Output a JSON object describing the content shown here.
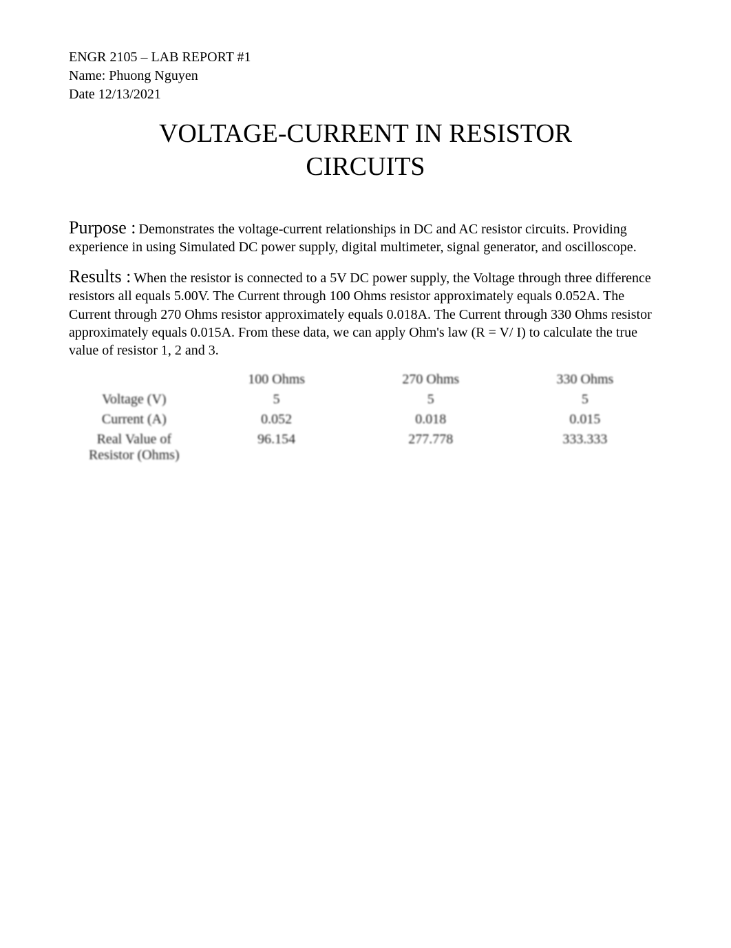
{
  "header": {
    "course_line": "ENGR 2105 – LAB REPORT #1",
    "name_line": "Name: Phuong Nguyen",
    "date_line": "Date 12/13/2021"
  },
  "title_line1": "VOLTAGE-CURRENT IN RESISTOR",
  "title_line2": "CIRCUITS",
  "purpose": {
    "label": "Purpose :",
    "body": "Demonstrates the voltage-current relationships in DC and AC resistor circuits. Providing experience in using Simulated DC power supply, digital multimeter, signal generator, and oscilloscope."
  },
  "results": {
    "label": "Results :",
    "body": "When the resistor is connected to a 5V DC power supply, the Voltage through three difference resistors all equals 5.00V. The Current through 100 Ohms resistor approximately equals 0.052A. The Current through 270 Ohms resistor approximately equals 0.018A. The Current through 330 Ohms resistor approximately equals 0.015A. From these data, we can apply Ohm's law (R = V/ I) to calculate the true value of resistor 1, 2 and 3."
  },
  "table": {
    "type": "table",
    "background_color": "#ffffff",
    "text_color": "#000000",
    "font_size_pt": 15,
    "columns": [
      "",
      "100 Ohms",
      "270 Ohms",
      "330 Ohms"
    ],
    "rows": [
      {
        "label": "Voltage (V)",
        "values": [
          "5",
          "5",
          "5"
        ]
      },
      {
        "label": "Current (A)",
        "values": [
          "0.052",
          "0.018",
          "0.015"
        ]
      },
      {
        "label_line1": "Real Value of",
        "label_line2": "Resistor (Ohms)",
        "values": [
          "96.154",
          "277.778",
          "333.333"
        ]
      }
    ],
    "col_alignment": [
      "center",
      "center",
      "center",
      "center"
    ],
    "col_widths_pct": [
      22,
      26,
      26,
      26
    ],
    "blur_effect_rows": [
      0,
      1,
      2,
      3
    ]
  },
  "colors": {
    "page_background": "#ffffff",
    "text": "#000000"
  },
  "typography": {
    "body_font_family": "Times New Roman",
    "header_fontsize_pt": 15,
    "title_fontsize_pt": 29,
    "section_label_fontsize_pt": 20,
    "body_fontsize_pt": 15
  }
}
